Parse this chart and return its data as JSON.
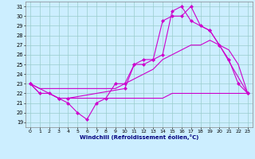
{
  "xlabel": "Windchill (Refroidissement éolien,°C)",
  "bg_color": "#cceeff",
  "line_color": "#cc00cc",
  "grid_color": "#99cccc",
  "xlim": [
    -0.5,
    23.5
  ],
  "ylim": [
    18.5,
    31.5
  ],
  "xticks": [
    0,
    1,
    2,
    3,
    4,
    5,
    6,
    7,
    8,
    9,
    10,
    11,
    12,
    13,
    14,
    15,
    16,
    17,
    18,
    19,
    20,
    21,
    22,
    23
  ],
  "yticks": [
    19,
    20,
    21,
    22,
    23,
    24,
    25,
    26,
    27,
    28,
    29,
    30,
    31
  ],
  "line1_x": [
    0,
    1,
    2,
    3,
    4,
    5,
    6,
    7,
    8,
    9,
    10,
    11,
    12,
    13,
    14,
    15,
    16,
    17,
    18,
    19,
    20,
    21,
    22,
    23
  ],
  "line1_y": [
    23,
    22,
    22,
    21.5,
    21.5,
    21.5,
    21.5,
    21.5,
    21.5,
    21.5,
    21.5,
    21.5,
    21.5,
    21.5,
    21.5,
    22,
    22,
    22,
    22,
    22,
    22,
    22,
    22,
    22
  ],
  "line2_x": [
    0,
    1,
    2,
    3,
    4,
    5,
    6,
    7,
    8,
    9,
    10,
    11,
    12,
    13,
    14,
    15,
    16,
    17,
    18,
    19,
    20,
    21,
    22,
    23
  ],
  "line2_y": [
    23,
    22,
    22,
    21.5,
    21,
    20,
    19.3,
    21,
    21.5,
    23,
    23,
    25,
    25.5,
    25.5,
    29.5,
    30,
    30,
    31,
    29,
    28.5,
    27,
    25.5,
    23,
    22
  ],
  "line3_x": [
    0,
    1,
    2,
    3,
    4,
    5,
    6,
    7,
    8,
    9,
    10,
    11,
    12,
    13,
    14,
    15,
    16,
    17,
    18,
    19,
    20,
    21,
    22,
    23
  ],
  "line3_y": [
    23,
    22.5,
    22.5,
    22.5,
    22.5,
    22.5,
    22.5,
    22.5,
    22.5,
    22.5,
    23,
    23.5,
    24,
    24.5,
    25.5,
    26,
    26.5,
    27,
    27,
    27.5,
    27,
    26.5,
    25,
    22
  ],
  "line4_x": [
    0,
    3,
    4,
    10,
    11,
    12,
    13,
    14,
    15,
    16,
    17,
    19,
    20,
    23
  ],
  "line4_y": [
    23,
    21.5,
    21.5,
    22.5,
    25,
    25,
    25.5,
    26,
    30.5,
    31,
    29.5,
    28.5,
    27,
    22
  ]
}
